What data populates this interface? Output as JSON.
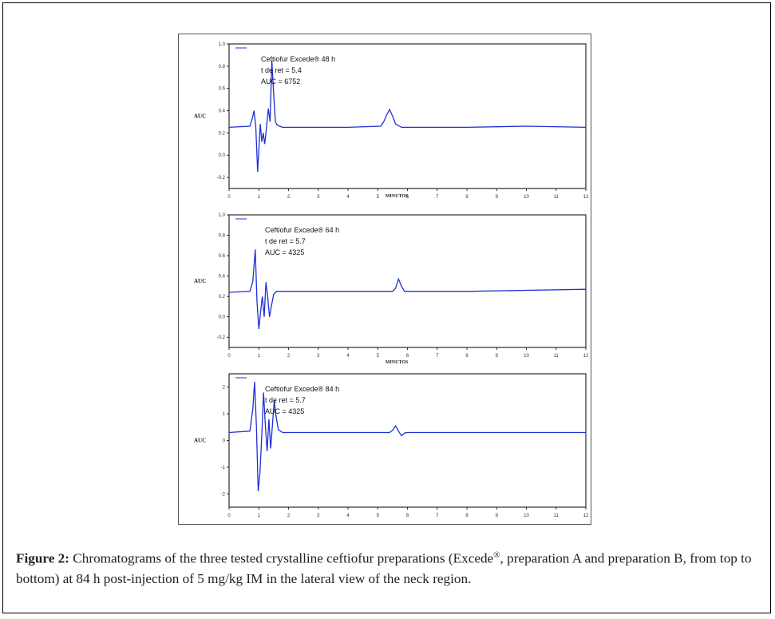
{
  "figure": {
    "caption_label": "Figure 2:",
    "caption_text_1": " Chromatograms of the three tested crystalline ceftiofur preparations (Excede",
    "caption_sup": "®",
    "caption_text_2": ", preparation A and preparation B, from top to bottom) at 84 h post-injection of 5 mg/kg IM in the lateral view of the neck region."
  },
  "chart_data": [
    {
      "type": "line",
      "ylabel": "AUC",
      "xlabel": "MINUTOS",
      "xlim": [
        0,
        12
      ],
      "ylim": [
        -0.3,
        1.0
      ],
      "x_ticks": [
        "0",
        "1",
        "2",
        "3",
        "4",
        "5",
        "6",
        "7",
        "8",
        "9",
        "10",
        "11",
        "12"
      ],
      "y_ticks": [
        "-0.2",
        "0.0",
        "0.2",
        "0.4",
        "0.6",
        "0.8",
        "1.0"
      ],
      "annotation": [
        "Ceftiofur Excede® 48 h",
        "t de ret = 5.4",
        "AUC = 6752"
      ],
      "baseline": 0.25,
      "series": [
        {
          "color": "#1f2fd6",
          "x": [
            0,
            0.7,
            0.78,
            0.84,
            0.9,
            0.96,
            1.0,
            1.05,
            1.1,
            1.15,
            1.2,
            1.26,
            1.32,
            1.38,
            1.44,
            1.5,
            1.56,
            1.62,
            1.7,
            1.8,
            2.0,
            4.0,
            5.1,
            5.2,
            5.3,
            5.4,
            5.5,
            5.6,
            5.8,
            8,
            10,
            12
          ],
          "y": [
            0.25,
            0.26,
            0.33,
            0.4,
            0.25,
            -0.15,
            0.05,
            0.28,
            0.12,
            0.2,
            0.1,
            0.25,
            0.42,
            0.3,
            0.85,
            0.55,
            0.3,
            0.27,
            0.26,
            0.25,
            0.25,
            0.25,
            0.26,
            0.3,
            0.36,
            0.41,
            0.35,
            0.28,
            0.25,
            0.25,
            0.26,
            0.25
          ]
        }
      ]
    },
    {
      "type": "line",
      "ylabel": "AUC",
      "xlabel": "MINUTOS",
      "xlim": [
        0,
        12
      ],
      "ylim": [
        -0.3,
        1.0
      ],
      "x_ticks": [
        "0",
        "1",
        "2",
        "3",
        "4",
        "5",
        "6",
        "7",
        "8",
        "9",
        "10",
        "11",
        "12"
      ],
      "y_ticks": [
        "-0.2",
        "0.0",
        "0.2",
        "0.4",
        "0.6",
        "0.8",
        "1.0"
      ],
      "annotation": [
        "Ceftiofur Excede® 64 h",
        "t de ret = 5.7",
        "AUC = 4325"
      ],
      "baseline": 0.25,
      "series": [
        {
          "color": "#1f2fd6",
          "x": [
            0,
            0.7,
            0.8,
            0.88,
            0.94,
            1.0,
            1.06,
            1.12,
            1.18,
            1.24,
            1.3,
            1.36,
            1.42,
            1.5,
            1.6,
            2.0,
            4,
            5.5,
            5.6,
            5.7,
            5.8,
            5.9,
            6.0,
            8,
            10,
            12
          ],
          "y": [
            0.24,
            0.25,
            0.35,
            0.66,
            0.15,
            -0.12,
            0.05,
            0.2,
            0.0,
            0.34,
            0.2,
            0.0,
            0.1,
            0.22,
            0.25,
            0.25,
            0.25,
            0.25,
            0.28,
            0.37,
            0.3,
            0.25,
            0.25,
            0.25,
            0.26,
            0.27
          ]
        }
      ]
    },
    {
      "type": "line",
      "ylabel": "AUC",
      "xlabel": "",
      "xlim": [
        0,
        12
      ],
      "ylim": [
        -2.5,
        2.5
      ],
      "x_ticks": [
        "0",
        "1",
        "2",
        "3",
        "4",
        "5",
        "6",
        "7",
        "8",
        "9",
        "10",
        "11",
        "12"
      ],
      "y_ticks": [
        "-2",
        "-1",
        "0",
        "1",
        "2"
      ],
      "annotation": [
        "Ceftiofur Excede® 84 h",
        "t de ret = 5.7",
        "AUC = 4325"
      ],
      "baseline": 0.3,
      "series": [
        {
          "color": "#1f2fd6",
          "x": [
            0,
            0.7,
            0.8,
            0.86,
            0.92,
            0.98,
            1.04,
            1.1,
            1.16,
            1.22,
            1.28,
            1.34,
            1.4,
            1.46,
            1.52,
            1.58,
            1.66,
            1.8,
            2.0,
            4,
            5.4,
            5.5,
            5.6,
            5.7,
            5.8,
            5.9,
            6.0,
            8,
            10,
            12
          ],
          "y": [
            0.3,
            0.35,
            1.2,
            2.2,
            0.5,
            -1.9,
            -1.2,
            0.2,
            1.8,
            0.6,
            -0.4,
            0.8,
            -0.3,
            0.6,
            1.5,
            0.9,
            0.4,
            0.3,
            0.3,
            0.3,
            0.3,
            0.38,
            0.55,
            0.35,
            0.18,
            0.28,
            0.3,
            0.3,
            0.3,
            0.3
          ]
        }
      ]
    }
  ]
}
